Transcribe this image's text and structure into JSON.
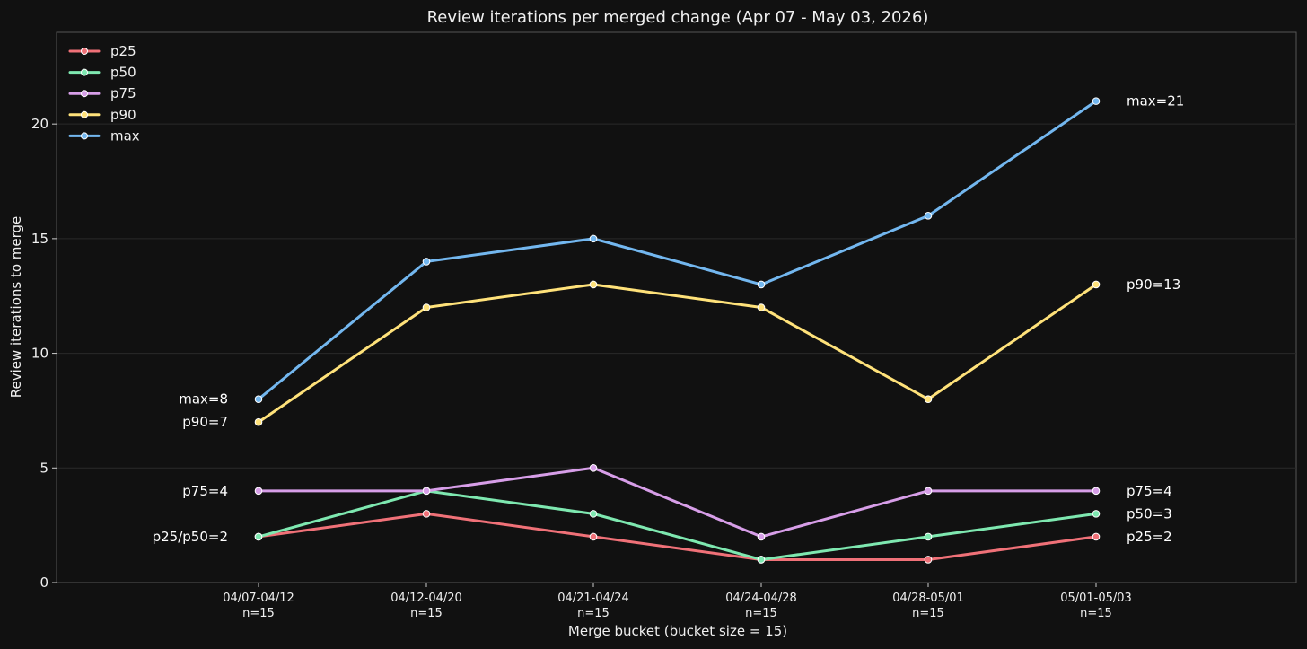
{
  "chart_data": {
    "type": "line",
    "title": "Review iterations per merged change (Apr 07 - May 03, 2026)",
    "xlabel": "Merge bucket (bucket size = 15)",
    "ylabel": "Review iterations to merge",
    "ylim": [
      0,
      24
    ],
    "yticks": [
      0,
      5,
      10,
      15,
      20
    ],
    "grid": "horizontal",
    "legend_position": "top-left",
    "categories": [
      "04/07-04/12",
      "04/12-04/20",
      "04/21-04/24",
      "04/24-04/28",
      "04/28-05/01",
      "05/01-05/03"
    ],
    "counts": [
      "n=15",
      "n=15",
      "n=15",
      "n=15",
      "n=15",
      "n=15"
    ],
    "series": [
      {
        "name": "p25",
        "color": "#f07178",
        "values": [
          2,
          3,
          2,
          1,
          1,
          2
        ]
      },
      {
        "name": "p50",
        "color": "#7ee8b0",
        "values": [
          2,
          4,
          3,
          1,
          2,
          3
        ]
      },
      {
        "name": "p75",
        "color": "#d79ee8",
        "values": [
          4,
          4,
          5,
          2,
          4,
          4
        ]
      },
      {
        "name": "p90",
        "color": "#ffe27a",
        "values": [
          7,
          12,
          13,
          12,
          8,
          13
        ]
      },
      {
        "name": "max",
        "color": "#73b7ef",
        "values": [
          8,
          14,
          15,
          13,
          16,
          21
        ]
      }
    ],
    "annotations": {
      "left": [
        {
          "text": "max=8",
          "y": 8
        },
        {
          "text": "p90=7",
          "y": 7
        },
        {
          "text": "p75=4",
          "y": 4
        },
        {
          "text": "p25/p50=2",
          "y": 2
        }
      ],
      "right": [
        {
          "text": "max=21",
          "y": 21
        },
        {
          "text": "p90=13",
          "y": 13
        },
        {
          "text": "p75=4",
          "y": 4
        },
        {
          "text": "p50=3",
          "y": 3
        },
        {
          "text": "p25=2",
          "y": 2
        }
      ]
    }
  }
}
